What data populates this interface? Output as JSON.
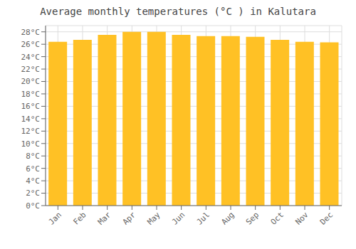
{
  "chart_data": {
    "type": "bar",
    "title": "Average monthly temperatures (°C ) in Kalutara",
    "categories": [
      "Jan",
      "Feb",
      "Mar",
      "Apr",
      "May",
      "Jun",
      "Jul",
      "Aug",
      "Sep",
      "Oct",
      "Nov",
      "Dec"
    ],
    "values": [
      26.4,
      26.7,
      27.5,
      28.0,
      28.0,
      27.5,
      27.3,
      27.3,
      27.2,
      26.7,
      26.4,
      26.3
    ],
    "color": "#FFC125",
    "ylim": [
      0,
      29
    ],
    "yticks": [
      {
        "value": 0,
        "label": "0°C"
      },
      {
        "value": 2,
        "label": "2°C"
      },
      {
        "value": 4,
        "label": "4°C"
      },
      {
        "value": 6,
        "label": "6°C"
      },
      {
        "value": 8,
        "label": "8°C"
      },
      {
        "value": 10,
        "label": "10°C"
      },
      {
        "value": 12,
        "label": "12°C"
      },
      {
        "value": 14,
        "label": "14°C"
      },
      {
        "value": 16,
        "label": "16°C"
      },
      {
        "value": 18,
        "label": "18°C"
      },
      {
        "value": 20,
        "label": "20°C"
      },
      {
        "value": 22,
        "label": "22°C"
      },
      {
        "value": 24,
        "label": "24°C"
      },
      {
        "value": 26,
        "label": "26°C"
      },
      {
        "value": 28,
        "label": "28°C"
      }
    ],
    "grid": true
  }
}
